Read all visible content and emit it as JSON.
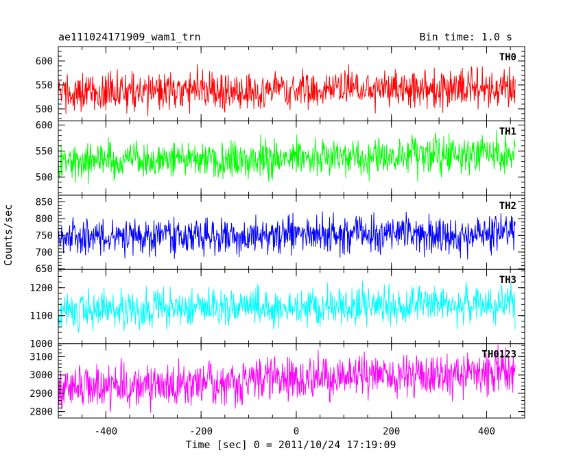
{
  "header": {
    "left_title": "ae111024171909_wam1_trn",
    "right_title": "Bin time: 1.0 s"
  },
  "chart_data": {
    "type": "line",
    "title": "ae111024171909_wam1_trn",
    "subtitle": "Bin time: 1.0 s",
    "xlabel": "Time [sec] 0 = 2011/10/24 17:19:09",
    "ylabel": "Counts/sec",
    "xlim": [
      -500,
      480
    ],
    "x_ticks": [
      -400,
      -200,
      0,
      200,
      400
    ],
    "x_start": -500,
    "x_end": 460,
    "x_step": 1,
    "grid": false,
    "panels": [
      {
        "series_name": "TH0",
        "color": "#ff0000",
        "ylim": [
          475,
          630
        ],
        "y_ticks": [
          500,
          550,
          600
        ],
        "values_summary": {
          "mean_start": 535,
          "mean_end": 545,
          "amplitude": 80
        }
      },
      {
        "series_name": "TH1",
        "color": "#00ff00",
        "ylim": [
          465,
          608
        ],
        "y_ticks": [
          500,
          550,
          600
        ],
        "values_summary": {
          "mean_start": 528,
          "mean_end": 545,
          "amplitude": 75
        }
      },
      {
        "series_name": "TH2",
        "color": "#0000ff",
        "ylim": [
          648,
          870
        ],
        "y_ticks": [
          650,
          700,
          750,
          800,
          850
        ],
        "values_summary": {
          "mean_start": 742,
          "mean_end": 755,
          "amplitude": 110
        }
      },
      {
        "series_name": "TH3",
        "color": "#00ffff",
        "ylim": [
          1000,
          1265
        ],
        "y_ticks": [
          1000,
          1100,
          1200
        ],
        "values_summary": {
          "mean_start": 1120,
          "mean_end": 1145,
          "amplitude": 130
        }
      },
      {
        "series_name": "TH0123",
        "color": "#ff00ff",
        "ylim": [
          2765,
          3170
        ],
        "y_ticks": [
          2800,
          2900,
          3000,
          3100
        ],
        "values_summary": {
          "mean_start": 2925,
          "mean_end": 3020,
          "amplitude": 230
        }
      }
    ]
  }
}
